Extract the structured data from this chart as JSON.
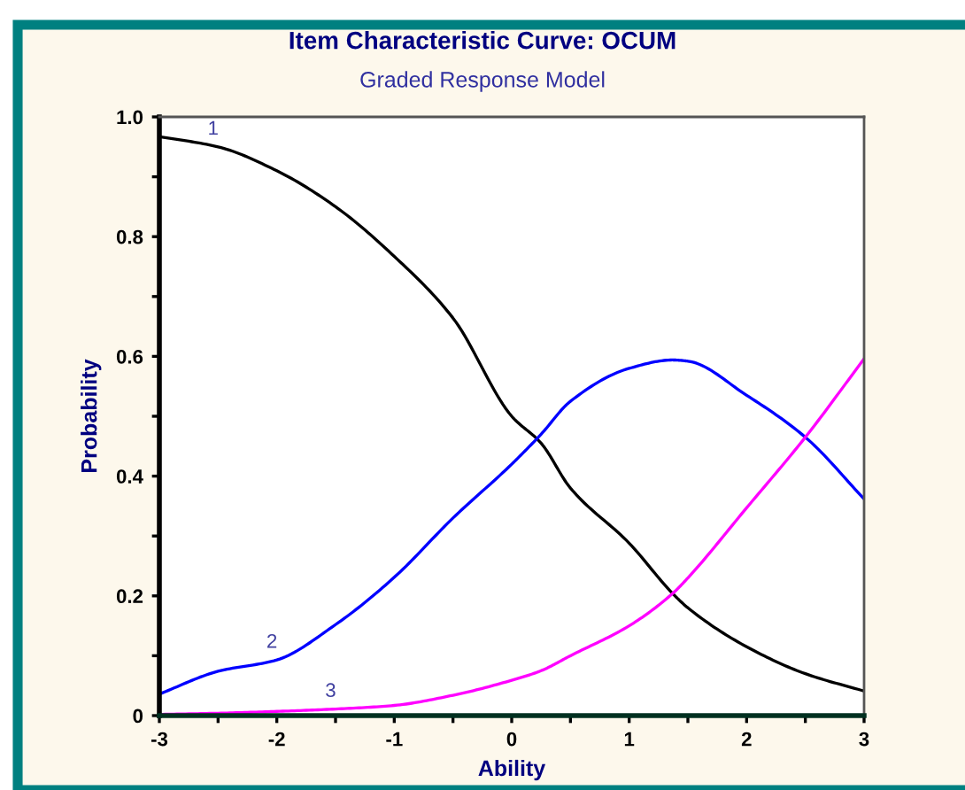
{
  "chart_data": {
    "type": "line",
    "title": "Item Characteristic Curve: OCUM",
    "subtitle": "Graded Response Model",
    "xlabel": "Ability",
    "ylabel": "Probability",
    "x": [
      -3,
      -2.5,
      -2,
      -1.5,
      -1,
      -0.5,
      0,
      0.25,
      0.5,
      1,
      1.37,
      1.5,
      2,
      2.5,
      3
    ],
    "series": [
      {
        "name": "1",
        "color": "#000000",
        "values": [
          0.967,
          0.95,
          0.91,
          0.85,
          0.767,
          0.664,
          0.5,
          0.455,
          0.38,
          0.288,
          0.204,
          0.18,
          0.115,
          0.07,
          0.041
        ]
      },
      {
        "name": "2",
        "color": "#0000ff",
        "values": [
          0.036,
          0.074,
          0.093,
          0.152,
          0.231,
          0.33,
          0.42,
          0.47,
          0.525,
          0.58,
          0.594,
          0.592,
          0.535,
          0.465,
          0.362
        ]
      },
      {
        "name": "3",
        "color": "#ff00ff",
        "values": [
          0.002,
          0.004,
          0.007,
          0.011,
          0.017,
          0.034,
          0.059,
          0.075,
          0.1,
          0.15,
          0.204,
          0.23,
          0.347,
          0.465,
          0.596
        ]
      }
    ],
    "xlim": [
      -3,
      3
    ],
    "ylim": [
      0,
      1
    ],
    "xticks": [
      -3,
      {
        "value": -2.5,
        "label": null
      },
      -2,
      {
        "value": -1.5,
        "label": null
      },
      -1,
      {
        "value": -0.5,
        "label": null
      },
      0,
      {
        "value": 0.5,
        "label": null
      },
      1,
      {
        "value": 1.5,
        "label": null
      },
      2,
      {
        "value": 2.5,
        "label": null
      },
      3
    ],
    "yticks": [
      {
        "value": 0,
        "label": "0"
      },
      {
        "value": 0.1,
        "label": null
      },
      {
        "value": 0.2,
        "label": "0.2"
      },
      {
        "value": 0.3,
        "label": null
      },
      {
        "value": 0.4,
        "label": "0.4"
      },
      {
        "value": 0.5,
        "label": null
      },
      {
        "value": 0.6,
        "label": "0.6"
      },
      {
        "value": 0.7,
        "label": null
      },
      {
        "value": 0.8,
        "label": "0.8"
      },
      {
        "value": 0.9,
        "label": null
      },
      {
        "value": 1.0,
        "label": "1.0"
      }
    ],
    "grid": false,
    "legend": false,
    "marker": "none",
    "line_style": "solid"
  }
}
